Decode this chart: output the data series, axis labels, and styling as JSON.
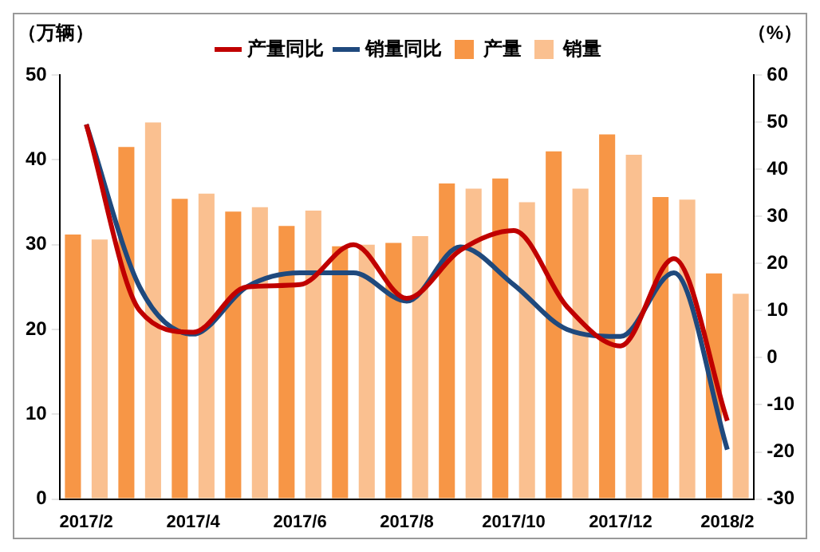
{
  "chart_data": {
    "type": "bar",
    "ylabel": "（万辆）",
    "y2label": "（%）",
    "categories": [
      "2017/2",
      null,
      "2017/4",
      null,
      "2017/6",
      null,
      "2017/8",
      null,
      "2017/10",
      null,
      "2017/12",
      null,
      "2018/2"
    ],
    "series": [
      {
        "name": "产量",
        "color": "#f79646",
        "values": [
          31.2,
          41.5,
          35.4,
          33.9,
          32.2,
          29.8,
          30.2,
          37.2,
          37.8,
          41.0,
          43.0,
          35.6,
          26.6
        ]
      },
      {
        "name": "销量",
        "color": "#fac090",
        "values": [
          30.6,
          44.4,
          36.0,
          34.4,
          34.0,
          30.0,
          31.0,
          36.6,
          35.0,
          36.6,
          40.6,
          35.3,
          24.2
        ]
      },
      {
        "name": "产量同比",
        "type": "line",
        "axis": "y2",
        "color": "#c00000",
        "values": [
          49.5,
          10,
          5.4,
          15,
          15.5,
          24,
          12.6,
          22.8,
          27,
          10.8,
          2.5,
          21,
          -13.4
        ]
      },
      {
        "name": "销量同比",
        "type": "line",
        "axis": "y2",
        "color": "#1f497d",
        "values": [
          49.5,
          15,
          5,
          15,
          18,
          18,
          12,
          23.5,
          15.5,
          6,
          4.5,
          18,
          -19.5
        ]
      }
    ],
    "ylim": [
      0,
      50
    ],
    "yticks": [
      0,
      10,
      20,
      30,
      40,
      50
    ],
    "y2lim": [
      -30,
      60
    ],
    "y2ticks": [
      -30,
      -20,
      -10,
      0,
      10,
      20,
      30,
      40,
      50,
      60
    ],
    "grid": false,
    "legend": "top",
    "marker": "none",
    "line_style": "solid"
  }
}
